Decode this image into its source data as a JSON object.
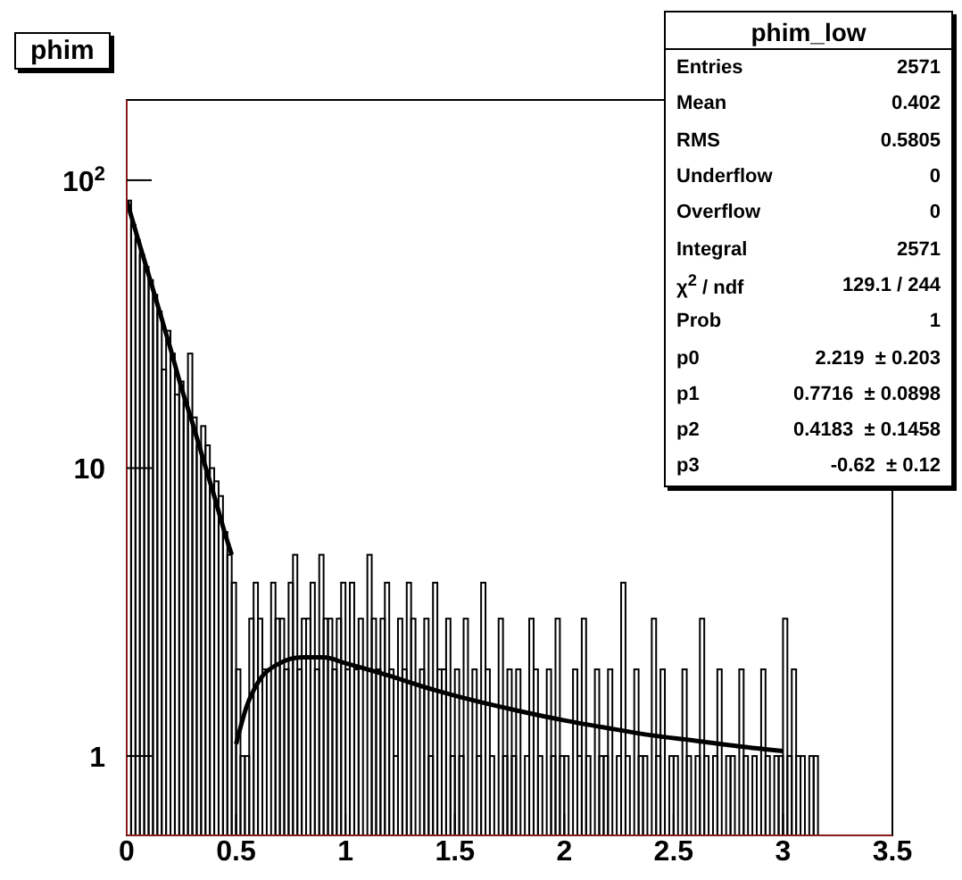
{
  "chart_data": {
    "type": "histogram",
    "title": "phim",
    "series": [
      {
        "color": "#000000",
        "bins": [
          0,
          0.02,
          0.04,
          0.06,
          0.08,
          0.1,
          0.12,
          0.14,
          0.16,
          0.18,
          0.2,
          0.22,
          0.24,
          0.26,
          0.28,
          0.3,
          0.32,
          0.34,
          0.36,
          0.38,
          0.4,
          0.42,
          0.44,
          0.46,
          0.48,
          0.5,
          0.52,
          0.54,
          0.56,
          0.58,
          0.6,
          0.62,
          0.64,
          0.66,
          0.68,
          0.7,
          0.72,
          0.74,
          0.76,
          0.78,
          0.8,
          0.82,
          0.84,
          0.86,
          0.88,
          0.9,
          0.92,
          0.94,
          0.96,
          0.98,
          1,
          1.02,
          1.04,
          1.06,
          1.08,
          1.1,
          1.12,
          1.14,
          1.16,
          1.18,
          1.2,
          1.22,
          1.24,
          1.26,
          1.28,
          1.3,
          1.32,
          1.34,
          1.36,
          1.38,
          1.4,
          1.42,
          1.44,
          1.46,
          1.48,
          1.5,
          1.52,
          1.54,
          1.56,
          1.58,
          1.6,
          1.62,
          1.64,
          1.66,
          1.68,
          1.7,
          1.72,
          1.74,
          1.76,
          1.78,
          1.8,
          1.82,
          1.84,
          1.86,
          1.88,
          1.9,
          1.92,
          1.94,
          1.96,
          1.98,
          2,
          2.02,
          2.04,
          2.06,
          2.08,
          2.1,
          2.12,
          2.14,
          2.16,
          2.18,
          2.2,
          2.22,
          2.24,
          2.26,
          2.28,
          2.3,
          2.32,
          2.34,
          2.36,
          2.38,
          2.4,
          2.42,
          2.44,
          2.46,
          2.48,
          2.5,
          2.52,
          2.54,
          2.56,
          2.58,
          2.6,
          2.62,
          2.64,
          2.66,
          2.68,
          2.7,
          2.72,
          2.74,
          2.76,
          2.78,
          2.8,
          2.82,
          2.84,
          2.86,
          2.88,
          2.9,
          2.92,
          2.94,
          2.96,
          2.98,
          3,
          3.02,
          3.04,
          3.06,
          3.08,
          3.1,
          3.12,
          3.14,
          3.16
        ],
        "values": [
          85,
          70,
          62,
          55,
          50,
          45,
          40,
          35,
          22,
          30,
          25,
          18,
          20,
          17,
          25,
          15,
          12,
          14,
          12,
          10,
          9,
          8,
          6,
          5,
          4,
          2,
          1,
          1,
          3,
          4,
          3,
          2,
          null,
          4,
          3,
          3,
          2,
          4,
          5,
          2,
          3,
          3,
          4,
          2,
          5,
          3,
          3,
          2,
          3,
          4,
          2,
          4,
          2,
          3,
          null,
          5,
          3,
          2,
          3,
          4,
          2,
          1,
          3,
          2,
          4,
          3,
          null,
          2,
          3,
          1,
          4,
          2,
          2,
          3,
          1,
          2,
          1,
          3,
          null,
          2,
          1,
          4,
          2,
          1,
          null,
          3,
          1,
          2,
          1,
          2,
          null,
          1,
          3,
          2,
          1,
          null,
          2,
          1,
          3,
          1,
          1,
          null,
          2,
          1,
          3,
          1,
          null,
          2,
          1,
          1,
          2,
          null,
          1,
          4,
          1,
          null,
          2,
          1,
          1,
          null,
          3,
          1,
          2,
          null,
          1,
          1,
          null,
          2,
          1,
          null,
          1,
          3,
          1,
          null,
          1,
          2,
          null,
          1,
          1,
          null,
          2,
          1,
          null,
          1,
          null,
          2,
          1,
          null,
          1,
          1,
          3,
          1,
          2,
          1,
          1,
          null,
          1,
          1
        ]
      },
      {
        "type": "line",
        "color": "#000000",
        "x": [
          0,
          0.05,
          0.1,
          0.15,
          0.2,
          0.25,
          0.3,
          0.35,
          0.4,
          0.45,
          0.48
        ],
        "values": [
          85,
          63,
          47,
          35,
          26,
          19,
          14.4,
          10.7,
          8,
          5.9,
          5
        ]
      },
      {
        "type": "line",
        "color": "#000000",
        "x": [
          0.5,
          0.55,
          0.6,
          0.7,
          0.8,
          0.9,
          1,
          1.2,
          1.4,
          1.6,
          1.8,
          2,
          2.2,
          2.4,
          2.6,
          2.8,
          3
        ],
        "values": [
          1.1,
          1.5,
          1.8,
          2.1,
          2.2,
          2.2,
          2.1,
          1.9,
          1.7,
          1.55,
          1.43,
          1.33,
          1.25,
          1.18,
          1.13,
          1.08,
          1.04
        ]
      }
    ],
    "xlim": [
      0,
      3.5
    ],
    "xticks": [
      0,
      0.5,
      1,
      1.5,
      2,
      2.5,
      3,
      3.5
    ],
    "ylim": [
      0.53,
      190
    ],
    "yticks": [
      {
        "value": 1,
        "label": "1"
      },
      {
        "value": 10,
        "label": "10"
      },
      {
        "value": 100,
        "label": "10$^{2}$"
      }
    ],
    "log": "y",
    "marker": "none",
    "line_style": "solid",
    "annotations": [
      "phim_low",
      "Entries",
      "2571",
      "Mean",
      "0.402",
      "RMS",
      "0.5805",
      "Underflow",
      "0",
      "Overflow",
      "0",
      "Integral",
      "2571",
      "χ$^{2}$ / ndf",
      "129.1 / 244",
      "Prob",
      "1",
      "p0",
      "2.219  ± 0.203",
      "p1",
      "0.7716  ± 0.0898",
      "p2",
      "0.4183  ± 0.1458",
      "p3",
      "-0.62  ± 0.12"
    ]
  }
}
